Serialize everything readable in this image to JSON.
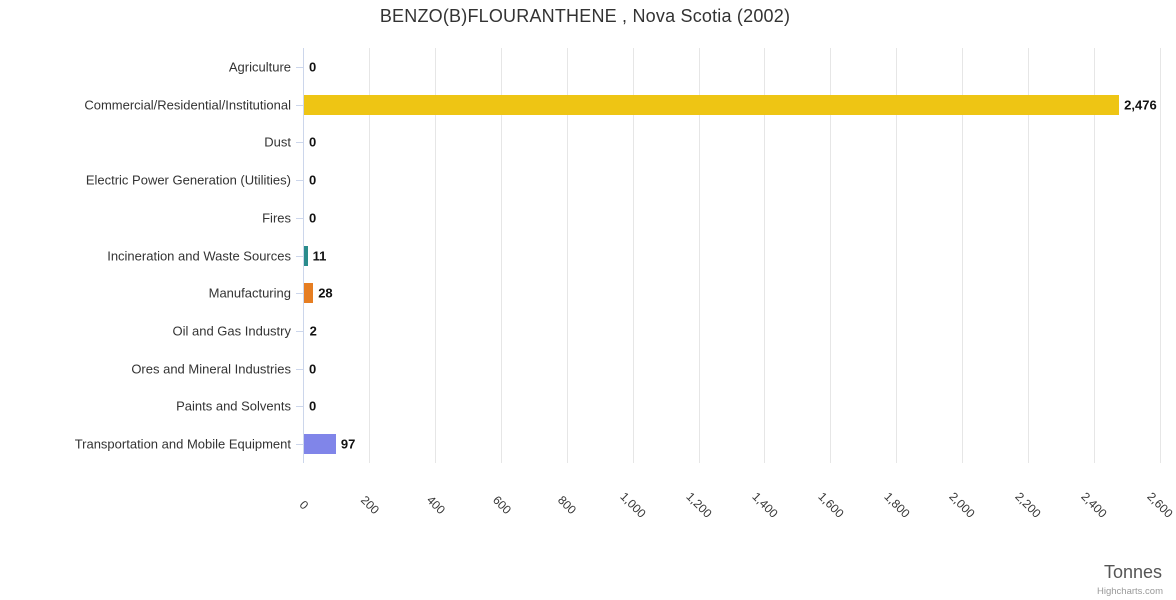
{
  "credits": "Highcharts.com",
  "colors": {
    "background": "#ffffff",
    "title_text": "#333333",
    "category_label_text": "#333333",
    "data_label_text": "#111111",
    "x_tick_label_text": "#333333",
    "axis_line": "#ccd6eb",
    "gridline": "#e6e6e6",
    "axis_title_text": "#555555",
    "credits_text": "#999999"
  },
  "chart_data": {
    "type": "bar",
    "orientation": "horizontal",
    "title": "BENZO(B)FLOURANTHENE , Nova Scotia (2002)",
    "xlabel": "Tonnes",
    "ylabel": "",
    "xlim": [
      0,
      2600
    ],
    "tick_interval": 200,
    "grid": true,
    "legend": false,
    "categories": [
      "Agriculture",
      "Commercial/Residential/Institutional",
      "Dust",
      "Electric Power Generation (Utilities)",
      "Fires",
      "Incineration and Waste Sources",
      "Manufacturing",
      "Oil and Gas Industry",
      "Ores and Mineral Industries",
      "Paints and Solvents",
      "Transportation and Mobile Equipment"
    ],
    "values": [
      0,
      2476,
      0,
      0,
      0,
      11,
      28,
      2,
      0,
      0,
      97
    ],
    "value_labels": [
      "0",
      "2,476",
      "0",
      "0",
      "0",
      "11",
      "28",
      "2",
      "0",
      "0",
      "97"
    ],
    "bar_colors": [
      null,
      "#eec514",
      null,
      null,
      null,
      "#2a8c8c",
      "#e67e22",
      null,
      null,
      null,
      "#8085e9"
    ],
    "x_tick_labels": [
      "0",
      "200",
      "400",
      "600",
      "800",
      "1,000",
      "1,200",
      "1,400",
      "1,600",
      "1,800",
      "2,000",
      "2,200",
      "2,400",
      "2,600"
    ]
  }
}
